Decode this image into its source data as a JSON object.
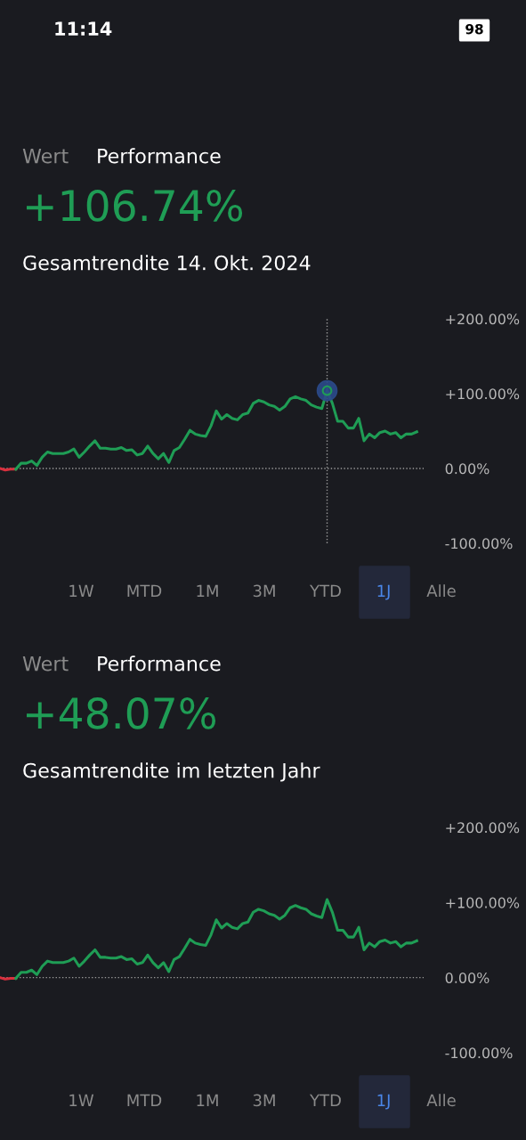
{
  "chart_data": [
    {
      "type": "line",
      "title": "+106.74%",
      "subtitle": "Gesamtrendite 14. Okt. 2024",
      "annotations": [
        "11:14",
        "98",
        "Wert",
        "Performance",
        "1W",
        "MTD",
        "1M",
        "3M",
        "YTD",
        "1J",
        "Alle"
      ],
      "categories": [
        null,
        null,
        null,
        null,
        null,
        null,
        null,
        null,
        null,
        null,
        null,
        null,
        null,
        null,
        null,
        null,
        null,
        null,
        null,
        null,
        null,
        null,
        null,
        null,
        null,
        null,
        null,
        null,
        null,
        null,
        null,
        null,
        null,
        null,
        null,
        null,
        null,
        null,
        null,
        null,
        null,
        null,
        null,
        null,
        null,
        null,
        null,
        null,
        null,
        null,
        null,
        null,
        null,
        null,
        null,
        null,
        null,
        null,
        null,
        null,
        null,
        null,
        null,
        null,
        null,
        null,
        null,
        null,
        null,
        null,
        null,
        null,
        null,
        null,
        null,
        null,
        null,
        null,
        null,
        null
      ],
      "series": [
        {
          "color": "#d9303e",
          "values": [
            0,
            -2,
            -1,
            -1,
            null,
            null,
            null,
            null,
            null,
            null,
            null,
            null,
            null,
            null,
            null,
            null,
            null,
            null,
            null,
            null,
            null,
            null,
            null,
            null,
            null,
            null,
            null,
            null,
            null,
            null,
            null,
            null,
            null,
            null,
            null,
            null,
            null,
            null,
            null,
            null,
            null,
            null,
            null,
            null,
            null,
            null,
            null,
            null,
            null,
            null,
            null,
            null,
            null,
            null,
            null,
            null,
            null,
            null,
            null,
            null,
            null,
            null,
            null,
            null,
            null,
            null,
            null,
            null,
            null,
            null,
            null,
            null,
            null,
            null,
            null,
            null,
            null,
            null,
            null,
            null
          ]
        },
        {
          "color": "#1f9d55",
          "values": [
            null,
            null,
            null,
            -1,
            7,
            7,
            10,
            4,
            15,
            22,
            20,
            20,
            20,
            22,
            26,
            15,
            22,
            30,
            37,
            27,
            27,
            26,
            26,
            28,
            24,
            25,
            18,
            20,
            30,
            20,
            13,
            20,
            8,
            24,
            28,
            39,
            51,
            46,
            44,
            43,
            57,
            77,
            66,
            72,
            67,
            65,
            72,
            74,
            87,
            91,
            89,
            85,
            83,
            78,
            83,
            93,
            96,
            93,
            91,
            85,
            82,
            80,
            104,
            87,
            63,
            63,
            54,
            54,
            67,
            37,
            46,
            41,
            48,
            50,
            46,
            48,
            41,
            46,
            46,
            49
          ]
        }
      ],
      "ylim": [
        -100,
        200
      ],
      "yticks": [
        {
          "value": -100,
          "label": "-100.00%"
        },
        {
          "value": 0,
          "label": "0.00%"
        },
        {
          "value": 100,
          "label": "+100.00%"
        },
        {
          "value": 200,
          "label": "+200.00%"
        }
      ],
      "tick_labels": "y",
      "grid": false,
      "legend": false,
      "marker": "none",
      "line_style": "solid",
      "ref_lines": [
        {
          "axis": "y",
          "value": 0,
          "line_style": "dotted",
          "color": "#9a9a9a"
        }
      ]
    },
    {
      "type": "line",
      "title": "+48.07%",
      "subtitle": "Gesamtrendite im letzten Jahr",
      "annotations": [
        "Wert",
        "Performance",
        "1W",
        "MTD",
        "1M",
        "3M",
        "YTD",
        "1J",
        "Alle"
      ],
      "categories": [
        null,
        null,
        null,
        null,
        null,
        null,
        null,
        null,
        null,
        null,
        null,
        null,
        null,
        null,
        null,
        null,
        null,
        null,
        null,
        null,
        null,
        null,
        null,
        null,
        null,
        null,
        null,
        null,
        null,
        null,
        null,
        null,
        null,
        null,
        null,
        null,
        null,
        null,
        null,
        null,
        null,
        null,
        null,
        null,
        null,
        null,
        null,
        null,
        null,
        null,
        null,
        null,
        null,
        null,
        null,
        null,
        null,
        null,
        null,
        null,
        null,
        null,
        null,
        null,
        null,
        null,
        null,
        null,
        null,
        null,
        null,
        null,
        null,
        null,
        null,
        null,
        null,
        null,
        null,
        null
      ],
      "series": [
        {
          "color": "#d9303e",
          "values": [
            0,
            -2,
            -1,
            -1,
            null,
            null,
            null,
            null,
            null,
            null,
            null,
            null,
            null,
            null,
            null,
            null,
            null,
            null,
            null,
            null,
            null,
            null,
            null,
            null,
            null,
            null,
            null,
            null,
            null,
            null,
            null,
            null,
            null,
            null,
            null,
            null,
            null,
            null,
            null,
            null,
            null,
            null,
            null,
            null,
            null,
            null,
            null,
            null,
            null,
            null,
            null,
            null,
            null,
            null,
            null,
            null,
            null,
            null,
            null,
            null,
            null,
            null,
            null,
            null,
            null,
            null,
            null,
            null,
            null,
            null,
            null,
            null,
            null,
            null,
            null,
            null,
            null,
            null,
            null,
            null
          ]
        },
        {
          "color": "#1f9d55",
          "values": [
            null,
            null,
            null,
            -1,
            7,
            7,
            10,
            4,
            15,
            22,
            20,
            20,
            20,
            22,
            26,
            15,
            22,
            30,
            37,
            27,
            27,
            26,
            26,
            28,
            24,
            25,
            18,
            20,
            30,
            20,
            13,
            20,
            8,
            24,
            28,
            39,
            51,
            46,
            44,
            43,
            57,
            77,
            66,
            72,
            67,
            65,
            72,
            74,
            87,
            91,
            89,
            85,
            83,
            78,
            83,
            93,
            96,
            93,
            91,
            85,
            82,
            80,
            104,
            87,
            63,
            63,
            54,
            54,
            67,
            37,
            46,
            41,
            48,
            50,
            46,
            48,
            41,
            46,
            46,
            49
          ]
        }
      ],
      "ylim": [
        -100,
        200
      ],
      "yticks": [
        {
          "value": -100,
          "label": "-100.00%"
        },
        {
          "value": 0,
          "label": "0.00%"
        },
        {
          "value": 100,
          "label": "+100.00%"
        },
        {
          "value": 200,
          "label": "+200.00%"
        }
      ],
      "tick_labels": "y",
      "grid": false,
      "legend": false,
      "marker": "none",
      "line_style": "solid",
      "ref_lines": [
        {
          "axis": "y",
          "value": 0,
          "line_style": "dotted",
          "color": "#9a9a9a"
        }
      ]
    }
  ]
}
